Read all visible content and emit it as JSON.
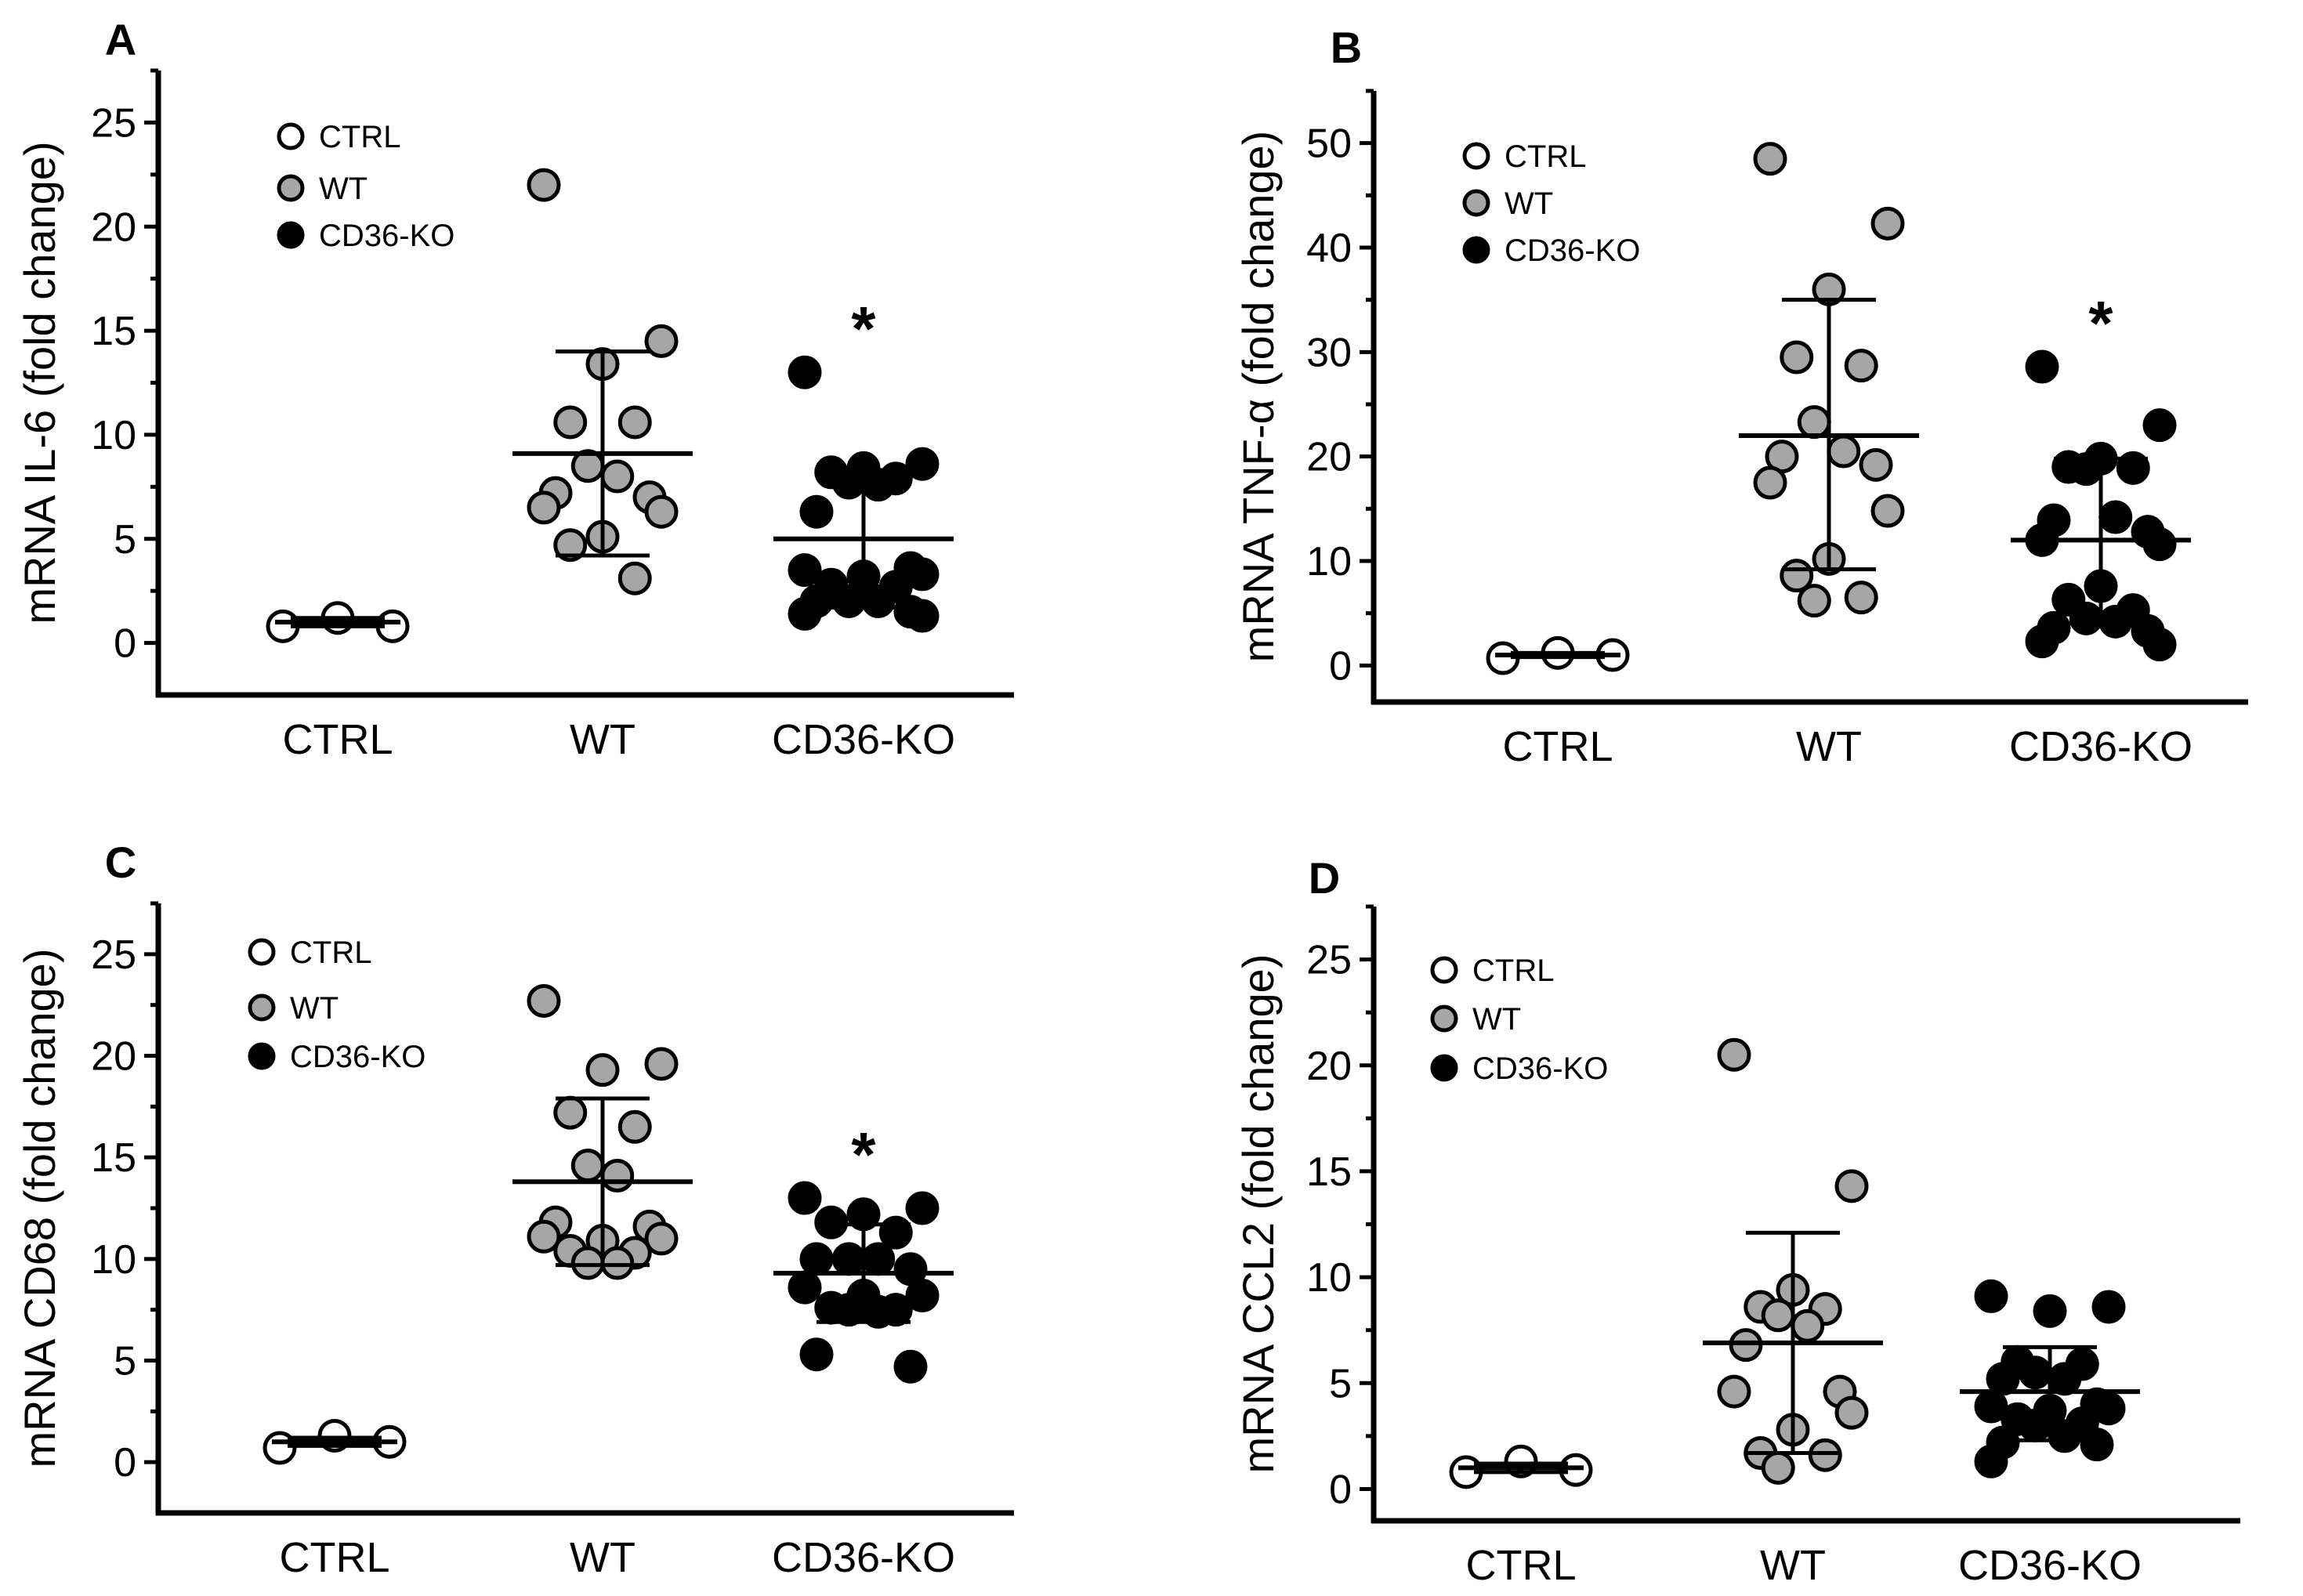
{
  "colors": {
    "CTRL": "#ffffff",
    "WT": "#a6a6a6",
    "CD36-KO": "#000000",
    "stroke": "#000000"
  },
  "chart_data": [
    {
      "type": "scatter",
      "panel_label": "A",
      "ylabel": "mRNA IL-6 (fold change)",
      "categories": [
        "CTRL",
        "WT",
        "CD36-KO"
      ],
      "legend": [
        "CTRL",
        "WT",
        "CD36-KO"
      ],
      "legend_position": "top-left",
      "ylim": [
        -2.5,
        27.5
      ],
      "yticks": [
        0,
        5,
        10,
        15,
        20,
        25
      ],
      "significance": {
        "CD36-KO": "*"
      },
      "series": [
        {
          "name": "CTRL",
          "values": [
            0.8,
            1.2,
            0.8
          ],
          "mean": 1.0,
          "sd_low": 0.8,
          "sd_high": 1.2
        },
        {
          "name": "WT",
          "values": [
            22,
            14.5,
            13.4,
            10.6,
            10.6,
            8.5,
            8.0,
            7.2,
            7.0,
            6.5,
            6.3,
            5.1,
            4.7,
            3.1
          ],
          "mean": 9.1,
          "sd_low": 4.2,
          "sd_high": 14.0
        },
        {
          "name": "CD36-KO",
          "values": [
            13,
            8.6,
            8.4,
            8.2,
            7.9,
            7.7,
            7.6,
            6.3,
            3.6,
            3.5,
            3.3,
            3.2,
            2.8,
            2.7,
            2.0,
            2.0,
            2.0,
            1.5,
            1.4,
            1.3
          ],
          "mean": 5.0,
          "sd_low": 1.7,
          "sd_high": 8.3
        }
      ]
    },
    {
      "type": "scatter",
      "panel_label": "B",
      "ylabel": "mRNA TNF-α (fold change)",
      "categories": [
        "CTRL",
        "WT",
        "CD36-KO"
      ],
      "legend": [
        "CTRL",
        "WT",
        "CD36-KO"
      ],
      "legend_position": "top-left",
      "ylim": [
        -3.5,
        55
      ],
      "yticks": [
        0,
        10,
        20,
        30,
        40,
        50
      ],
      "significance": {
        "CD36-KO": "*"
      },
      "series": [
        {
          "name": "CTRL",
          "values": [
            0.7,
            1.2,
            1.0
          ],
          "mean": 1.0,
          "sd_low": 0.8,
          "sd_high": 1.2
        },
        {
          "name": "WT",
          "values": [
            48.5,
            42.3,
            36,
            29.5,
            28.7,
            23.3,
            20.5,
            20,
            19.2,
            17.5,
            14.8,
            10.2,
            8.6,
            6.5,
            6.2
          ],
          "mean": 22.0,
          "sd_low": 9.2,
          "sd_high": 35.0
        },
        {
          "name": "CD36-KO",
          "values": [
            28.6,
            23,
            19.8,
            19.0,
            18.9,
            18.8,
            14.2,
            13.9,
            12.8,
            12.0,
            11.6,
            7.6,
            6.3,
            5.3,
            4.5,
            4.2,
            3.6,
            3.3,
            2.3,
            2.0
          ],
          "mean": 12.0,
          "sd_low": 4.0,
          "sd_high": 19.8
        }
      ]
    },
    {
      "type": "scatter",
      "panel_label": "C",
      "ylabel": "mRNA CD68 (fold change)",
      "categories": [
        "CTRL",
        "WT",
        "CD36-KO"
      ],
      "legend": [
        "CTRL",
        "WT",
        "CD36-KO"
      ],
      "legend_position": "top-left",
      "ylim": [
        -2.5,
        27.5
      ],
      "yticks": [
        0,
        5,
        10,
        15,
        20,
        25
      ],
      "significance": {
        "CD36-KO": "*"
      },
      "series": [
        {
          "name": "CTRL",
          "values": [
            0.7,
            1.3,
            1.0
          ],
          "mean": 1.0,
          "sd_low": 0.8,
          "sd_high": 1.2
        },
        {
          "name": "WT",
          "values": [
            22.7,
            19.6,
            19.3,
            17.2,
            16.5,
            14.6,
            14.1,
            11.8,
            11.6,
            11.1,
            11.0,
            10.9,
            10.4,
            10.3,
            9.8,
            9.8
          ],
          "mean": 13.8,
          "sd_low": 9.7,
          "sd_high": 17.9
        },
        {
          "name": "CD36-KO",
          "values": [
            13,
            12.5,
            12.2,
            11.8,
            11.3,
            10.0,
            10.0,
            10.0,
            9.5,
            8.6,
            8.2,
            8.2,
            7.6,
            7.5,
            7.5,
            7.4,
            5.3,
            4.7
          ],
          "mean": 9.3,
          "sd_low": 6.9,
          "sd_high": 11.7
        }
      ]
    },
    {
      "type": "scatter",
      "panel_label": "D",
      "ylabel": "mRNA CCL2 (fold change)",
      "categories": [
        "CTRL",
        "WT",
        "CD36-KO"
      ],
      "legend": [
        "CTRL",
        "WT",
        "CD36-KO"
      ],
      "legend_position": "top-left",
      "ylim": [
        -1.5,
        27.5
      ],
      "yticks": [
        0,
        5,
        10,
        15,
        20,
        25
      ],
      "significance": {},
      "series": [
        {
          "name": "CTRL",
          "values": [
            0.8,
            1.3,
            0.9
          ],
          "mean": 1.0,
          "sd_low": 0.8,
          "sd_high": 1.2
        },
        {
          "name": "WT",
          "values": [
            20.5,
            14.3,
            9.4,
            8.6,
            8.5,
            8.2,
            7.7,
            6.8,
            4.6,
            4.6,
            3.6,
            2.8,
            1.7,
            1.6,
            1.0
          ],
          "mean": 6.9,
          "sd_low": 1.7,
          "sd_high": 12.1
        },
        {
          "name": "CD36-KO",
          "values": [
            9.1,
            8.6,
            8.4,
            6.0,
            5.9,
            5.5,
            5.2,
            5.2,
            4.0,
            3.9,
            3.8,
            3.7,
            3.3,
            3.1,
            3.0,
            2.5,
            2.2,
            2.1,
            1.3
          ],
          "mean": 4.6,
          "sd_low": 2.3,
          "sd_high": 6.7
        }
      ]
    }
  ]
}
